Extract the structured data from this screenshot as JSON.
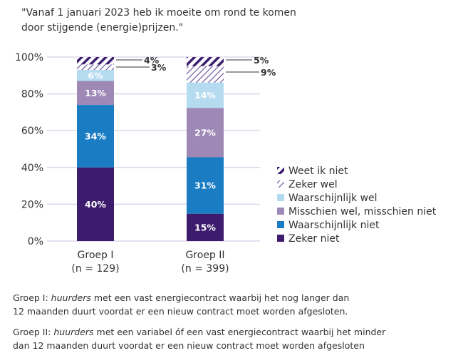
{
  "chart_data": {
    "type": "bar",
    "stacked": true,
    "title_lines": [
      "\"Vanaf 1 januari 2023 heb ik moeite om rond te komen",
      "door stijgende (energie)prijzen.\""
    ],
    "categories": [
      {
        "name": "Groep I",
        "n": "(n = 129)"
      },
      {
        "name": "Groep II",
        "n": "(n = 399)"
      }
    ],
    "ylim": [
      0,
      100
    ],
    "yticks": [
      "0%",
      "20%",
      "40%",
      "60%",
      "80%",
      "100%"
    ],
    "ytick_values": [
      0,
      20,
      40,
      60,
      80,
      100
    ],
    "grid": true,
    "legend_placement": "right",
    "series": [
      {
        "name": "Zeker niet",
        "color": "#3d1c6e",
        "pattern": "solid",
        "values": [
          40,
          15
        ],
        "labels": [
          "40%",
          "15%"
        ]
      },
      {
        "name": "Waarschijnlijk niet",
        "color": "#1a7cc3",
        "pattern": "solid",
        "values": [
          34,
          31
        ],
        "labels": [
          "34%",
          "31%"
        ]
      },
      {
        "name": "Misschien wel, misschien niet",
        "color": "#9e88b6",
        "pattern": "solid",
        "values": [
          13,
          27
        ],
        "labels": [
          "13%",
          "27%"
        ]
      },
      {
        "name": "Waarschijnlijk wel",
        "color": "#b5dbf0",
        "pattern": "solid",
        "values": [
          6,
          14
        ],
        "labels": [
          "6%",
          "14%"
        ]
      },
      {
        "name": "Zeker wel",
        "color": "#6a55a0",
        "pattern": "thin-hatch",
        "values": [
          3,
          9
        ],
        "labels": [
          "3%",
          "9%"
        ]
      },
      {
        "name": "Weet ik niet",
        "color": "#3d1c6e",
        "pattern": "thick-hatch",
        "values": [
          4,
          5
        ],
        "labels": [
          "4%",
          "5%"
        ]
      }
    ]
  },
  "notes": [
    {
      "prefix": "Groep I: ",
      "em": "huurders",
      "rest_line1": " met een vast energiecontract waarbij het nog langer dan",
      "line2": "12 maanden duurt voordat er een nieuw contract moet worden afgesloten."
    },
    {
      "prefix": "Groep II: ",
      "em": "huurders",
      "rest_line1": " met een variabel óf een vast energiecontract waarbij het minder",
      "line2": "dan 12 maanden duurt voordat er een nieuw contract moet worden afgesloten"
    }
  ]
}
